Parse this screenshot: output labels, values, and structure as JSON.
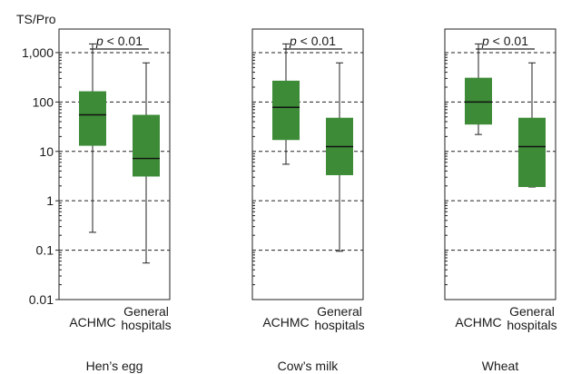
{
  "chart_data": {
    "type": "box",
    "ylabel": "TS/Pro",
    "yscale": "log",
    "ylim": [
      0.01,
      3000
    ],
    "yticks": [
      0.01,
      0.1,
      1,
      10,
      100,
      1000
    ],
    "ytick_labels": [
      "0.01",
      "0.1",
      "1",
      "10",
      "100",
      "1,000"
    ],
    "grid": "dashed-horizontal",
    "box_color": "#3d8b37",
    "panels": [
      {
        "title": "Hen’s egg",
        "significance": "p < 0.01",
        "significance_p": "p",
        "significance_rest": " < 0.01",
        "groups": [
          {
            "label": [
              "ACHMC"
            ],
            "min": 0.23,
            "q1": 13,
            "median": 55,
            "q3": 165,
            "max": 1500
          },
          {
            "label": [
              "General",
              "hospitals"
            ],
            "min": 0.055,
            "q1": 3.1,
            "median": 7.2,
            "q3": 55,
            "max": 620
          }
        ]
      },
      {
        "title": "Cow’s milk",
        "significance": "p < 0.01",
        "significance_p": "p",
        "significance_rest": " < 0.01",
        "groups": [
          {
            "label": [
              "ACHMC"
            ],
            "min": 5.5,
            "q1": 17,
            "median": 78,
            "q3": 270,
            "max": 1500
          },
          {
            "label": [
              "General",
              "hospitals"
            ],
            "min": 0.095,
            "q1": 3.3,
            "median": 12.5,
            "q3": 48,
            "max": 620
          }
        ]
      },
      {
        "title": "Wheat",
        "significance": "p < 0.01",
        "significance_p": "p",
        "significance_rest": " < 0.01",
        "groups": [
          {
            "label": [
              "ACHMC"
            ],
            "min": 22,
            "q1": 35,
            "median": 100,
            "q3": 310,
            "max": 1500
          },
          {
            "label": [
              "General",
              "hospitals"
            ],
            "min": 1.9,
            "q1": 1.9,
            "median": 12.5,
            "q3": 48,
            "max": 620
          }
        ]
      }
    ]
  }
}
